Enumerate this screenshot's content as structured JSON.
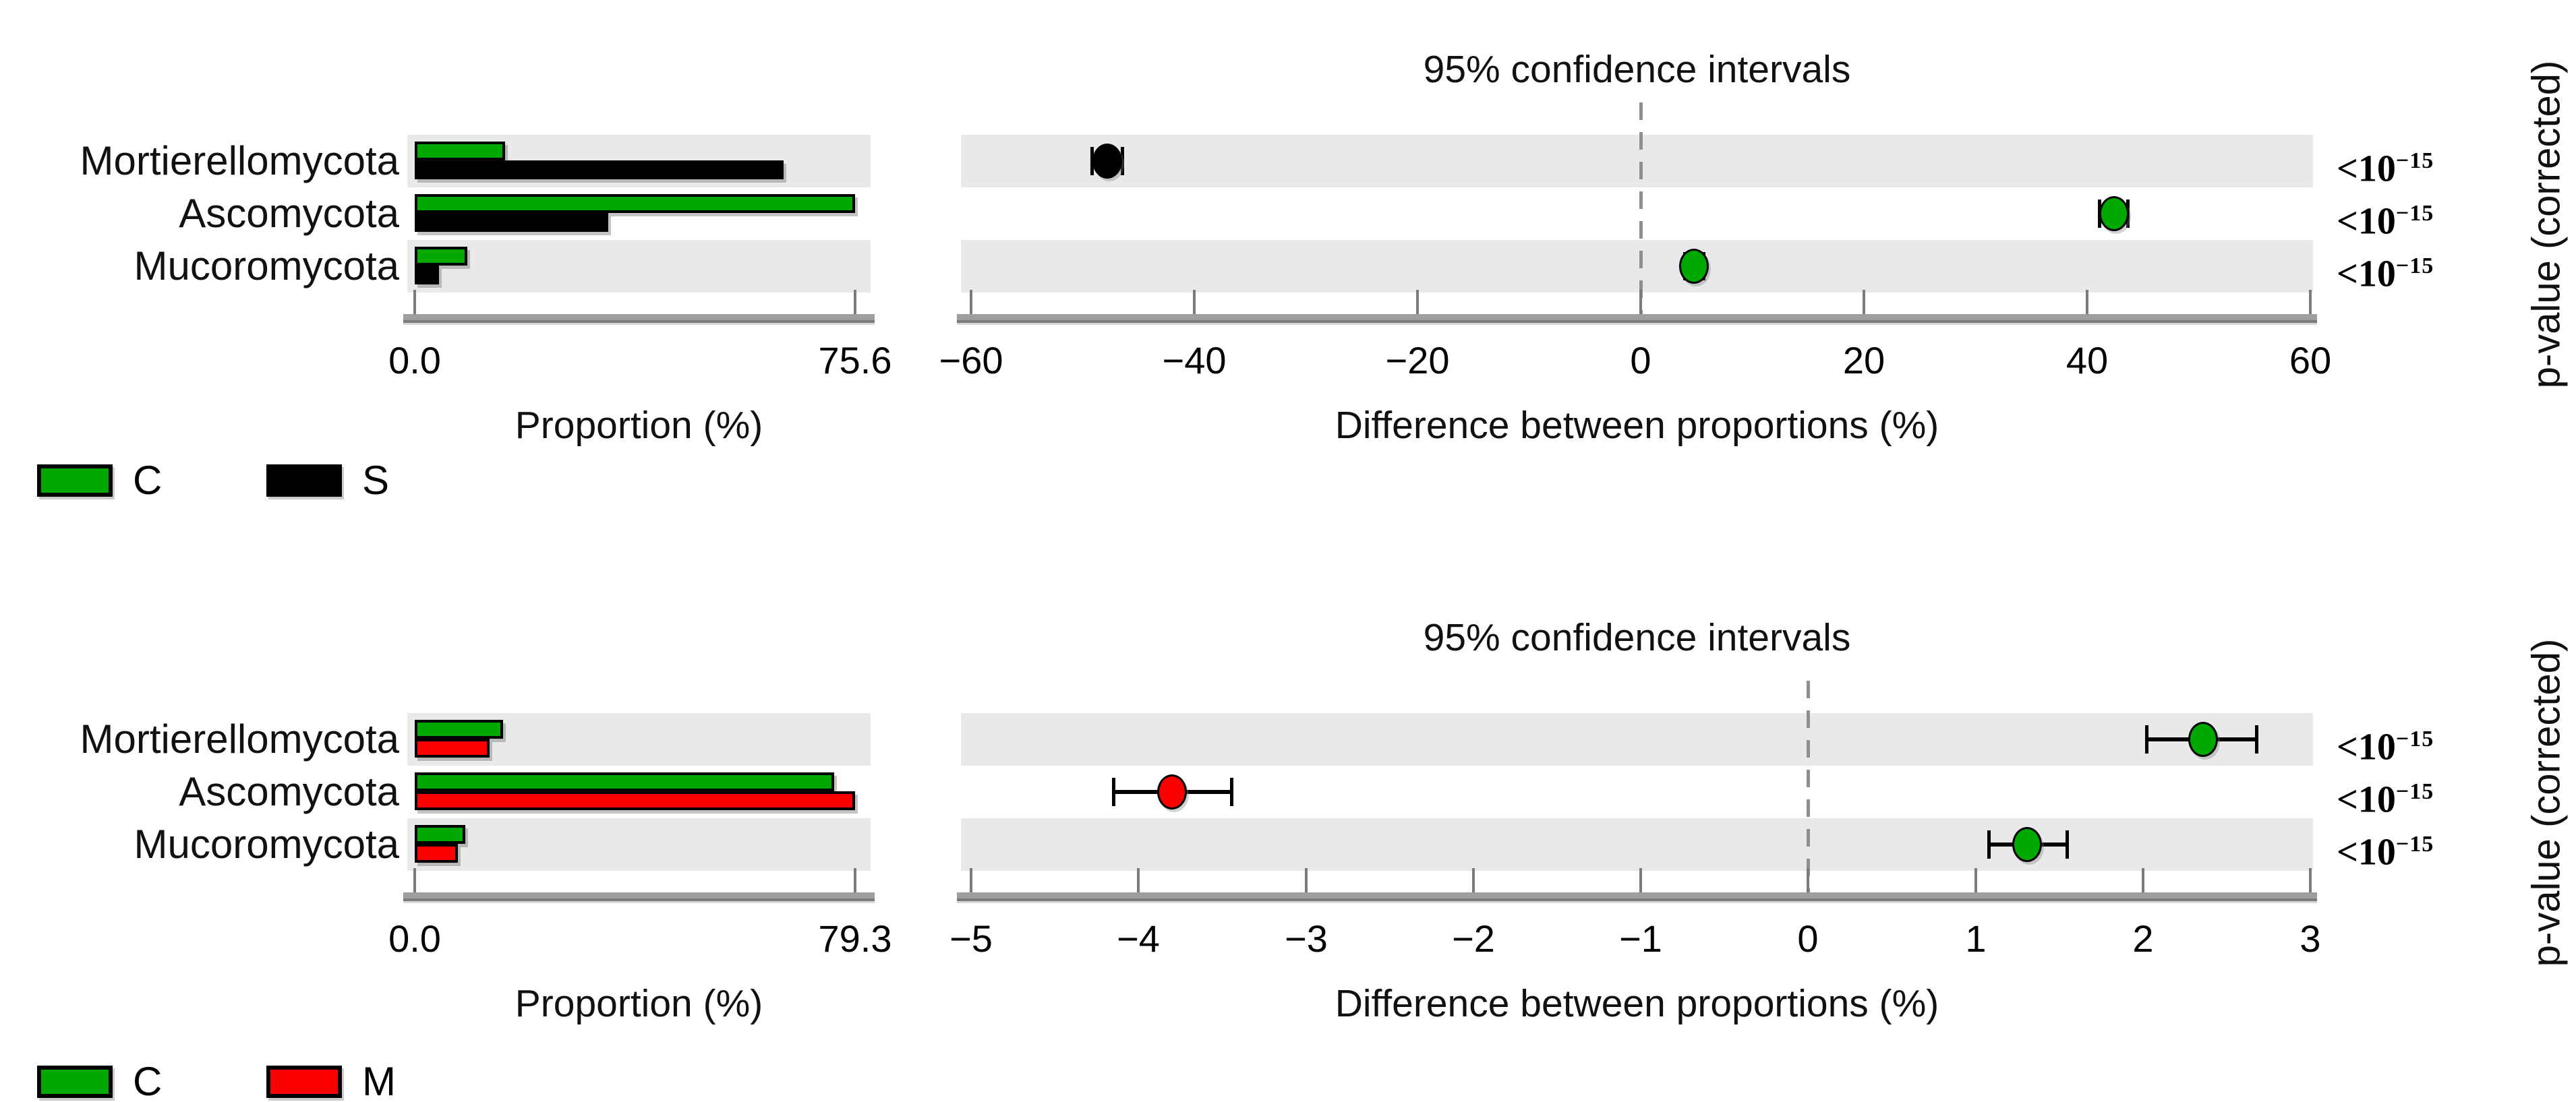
{
  "shared": {
    "ci_title": "95% confidence intervals",
    "proportion_xlabel": "Proportion (%)",
    "difference_xlabel": "Difference between proportions (%)",
    "pvalue_axis_label": "p-value (corrected)"
  },
  "colors": {
    "green": "#00a800",
    "black": "#000000",
    "red": "#fa0000",
    "stripe": "#e9e9e9",
    "axis_band": "#9e9e9e",
    "tick": "#7b7b7b",
    "zero_dash": "#8f8f8f"
  },
  "chart_data": {
    "type": "extended-error-bar",
    "description": "STAMP-style figure: two panels, each with a grouped horizontal proportion bar chart (left), a difference-between-proportions 95% CI dot plot (right), and corrected p-values per taxon.",
    "panels": [
      {
        "comparison": "C vs S",
        "categories": [
          "Mortierellomycota",
          "Ascomycota",
          "Mucoromycota"
        ],
        "legend": [
          {
            "label": "C",
            "color_key": "green"
          },
          {
            "label": "S",
            "color_key": "black"
          }
        ],
        "proportion": {
          "xlabel": "Proportion (%)",
          "xlim": [
            0,
            75.6
          ],
          "tick_labels": [
            "0.0",
            "75.6"
          ],
          "series": [
            {
              "name": "C",
              "color_key": "green",
              "values": [
                15.5,
                75.6,
                9.0
              ]
            },
            {
              "name": "S",
              "color_key": "black",
              "values": [
                63.3,
                33.2,
                4.2
              ]
            }
          ]
        },
        "difference": {
          "xlabel": "Difference between proportions (%)",
          "xlim": [
            -60,
            60
          ],
          "tick_values": [
            -60,
            -40,
            -20,
            0,
            20,
            40,
            60
          ],
          "tick_labels": [
            "−60",
            "−40",
            "−20",
            "0",
            "20",
            "40",
            "60"
          ],
          "zero_line": true,
          "points": [
            {
              "category": "Mortierellomycota",
              "value": -47.8,
              "ci_low": -49.2,
              "ci_high": -46.4,
              "color_key": "black"
            },
            {
              "category": "Ascomycota",
              "value": 42.4,
              "ci_low": 41.1,
              "ci_high": 43.7,
              "color_key": "green"
            },
            {
              "category": "Mucoromycota",
              "value": 4.8,
              "ci_low": 3.9,
              "ci_high": 5.7,
              "color_key": "green"
            }
          ]
        },
        "p_values": [
          {
            "base": "<10",
            "exp": "−15"
          },
          {
            "base": "<10",
            "exp": "−15"
          },
          {
            "base": "<10",
            "exp": "−15"
          }
        ]
      },
      {
        "comparison": "C vs M",
        "categories": [
          "Mortierellomycota",
          "Ascomycota",
          "Mucoromycota"
        ],
        "legend": [
          {
            "label": "C",
            "color_key": "green"
          },
          {
            "label": "M",
            "color_key": "red"
          }
        ],
        "proportion": {
          "xlabel": "Proportion (%)",
          "xlim": [
            0,
            79.3
          ],
          "tick_labels": [
            "0.0",
            "79.3"
          ],
          "series": [
            {
              "name": "C",
              "color_key": "green",
              "values": [
                15.9,
                75.5,
                9.1
              ]
            },
            {
              "name": "M",
              "color_key": "red",
              "values": [
                13.5,
                79.3,
                7.8
              ]
            }
          ]
        },
        "difference": {
          "xlabel": "Difference between proportions (%)",
          "xlim": [
            -5,
            3
          ],
          "tick_values": [
            -5,
            -4,
            -3,
            -2,
            -1,
            0,
            1,
            2,
            3
          ],
          "tick_labels": [
            "−5",
            "−4",
            "−3",
            "−2",
            "−1",
            "0",
            "1",
            "2",
            "3"
          ],
          "zero_line": true,
          "points": [
            {
              "category": "Mortierellomycota",
              "value": 2.36,
              "ci_low": 2.02,
              "ci_high": 2.68,
              "color_key": "green"
            },
            {
              "category": "Ascomycota",
              "value": -3.8,
              "ci_low": -4.15,
              "ci_high": -3.44,
              "color_key": "red"
            },
            {
              "category": "Mucoromycota",
              "value": 1.31,
              "ci_low": 1.08,
              "ci_high": 1.55,
              "color_key": "green"
            }
          ]
        },
        "p_values": [
          {
            "base": "<10",
            "exp": "−15"
          },
          {
            "base": "<10",
            "exp": "−15"
          },
          {
            "base": "<10",
            "exp": "−15"
          }
        ]
      }
    ]
  }
}
